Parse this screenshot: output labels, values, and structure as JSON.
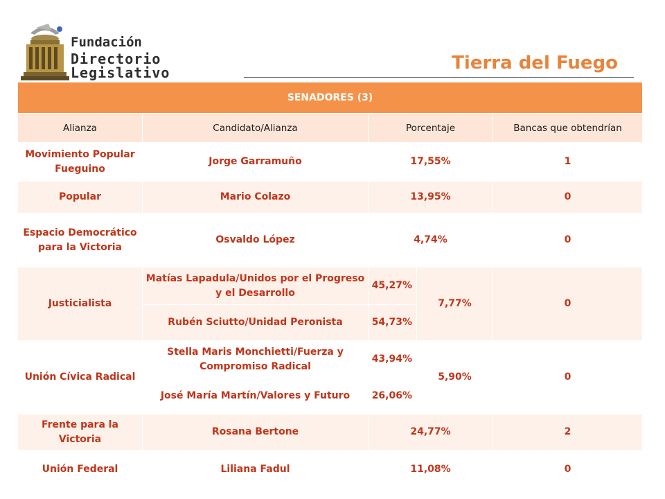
{
  "logo": {
    "line1": "Fundación",
    "line2": "Directorio Legislativo"
  },
  "region": "Tierra del Fuego",
  "table": {
    "section_title": "SENADORES (3)",
    "columns": [
      "Alianza",
      "Candidato/Alianza",
      "Porcentaje",
      "Bancas que obtendrían"
    ],
    "rows": [
      {
        "alianza": "Movimiento Popular Fueguino",
        "candidato": "Jorge Garramuño",
        "porcentaje": "17,55%",
        "bancas": "1"
      },
      {
        "alianza": "Popular",
        "candidato": "Mario Colazo",
        "porcentaje": "13,95%",
        "bancas": "0"
      },
      {
        "alianza": "Espacio Democrático para la Victoria",
        "candidato": "Osvaldo López",
        "porcentaje": "4,74%",
        "bancas": "0"
      },
      {
        "alianza": "Justicialista",
        "sub": [
          {
            "candidato": "Matías Lapadula/Unidos por el Progreso y el Desarrollo",
            "pct": "45,27%"
          },
          {
            "candidato": "Rubén Sciutto/Unidad Peronista",
            "pct": "54,73%"
          }
        ],
        "porcentaje": "7,77%",
        "bancas": "0"
      },
      {
        "alianza": "Unión Cívica Radical",
        "sub": [
          {
            "candidato": "Stella Maris Monchietti/Fuerza y Compromiso Radical",
            "pct": "43,94%"
          },
          {
            "candidato": "José María Martín/Valores y Futuro",
            "pct": "26,06%"
          }
        ],
        "porcentaje": "5,90%",
        "bancas": "0"
      },
      {
        "alianza": "Frente para la Victoria",
        "candidato": "Rosana Bertone",
        "porcentaje": "24,77%",
        "bancas": "2"
      },
      {
        "alianza": "Unión Federal",
        "candidato": "Liliana Fadul",
        "porcentaje": "11,08%",
        "bancas": "0"
      }
    ]
  }
}
